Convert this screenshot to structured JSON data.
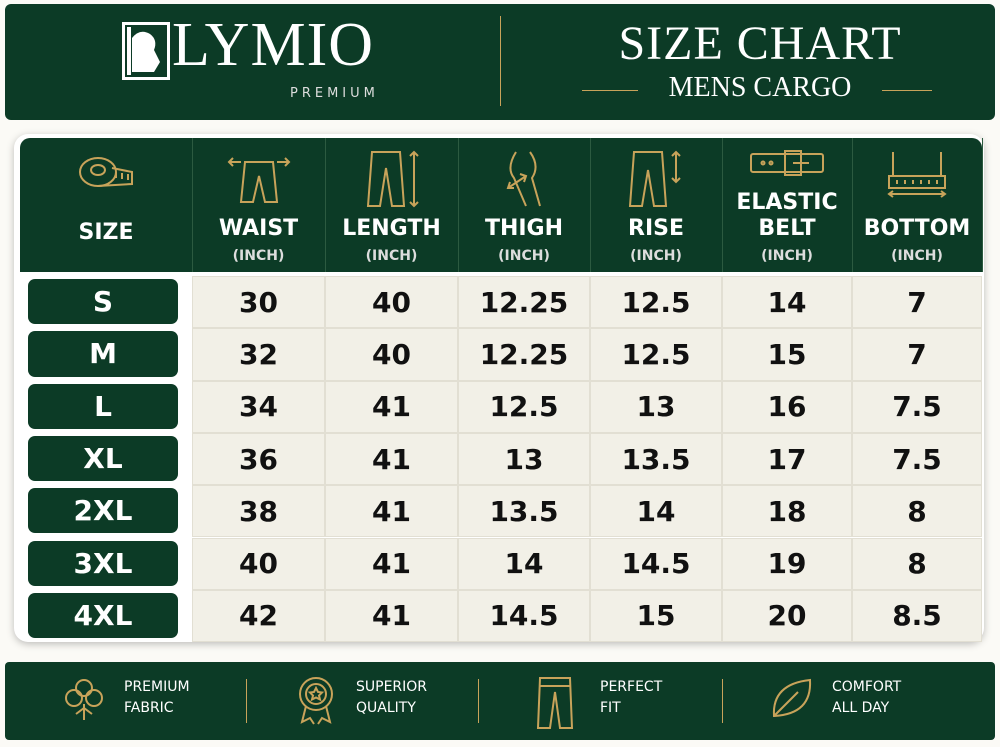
{
  "header": {
    "brand": "LYMIO",
    "tagline": "PREMIUM",
    "title": "SIZE CHART",
    "subtitle": "MENS CARGO"
  },
  "table": {
    "columns": [
      {
        "name": "SIZE"
      },
      {
        "name": "WAIST",
        "unit": "(INCH)"
      },
      {
        "name": "LENGTH",
        "unit": "(INCH)"
      },
      {
        "name": "THIGH",
        "unit": "(INCH)"
      },
      {
        "name": "RISE",
        "unit": "(INCH)"
      },
      {
        "name": "ELASTIC BELT",
        "unit": "(INCH)"
      },
      {
        "name": "BOTTOM",
        "unit": "(INCH)"
      }
    ],
    "rows": [
      [
        "S",
        "30",
        "40",
        "12.25",
        "12.5",
        "14",
        "7"
      ],
      [
        "M",
        "32",
        "40",
        "12.25",
        "12.5",
        "15",
        "7"
      ],
      [
        "L",
        "34",
        "41",
        "12.5",
        "13",
        "16",
        "7.5"
      ],
      [
        "XL",
        "36",
        "41",
        "13",
        "13.5",
        "17",
        "7.5"
      ],
      [
        "2XL",
        "38",
        "41",
        "13.5",
        "14",
        "18",
        "8"
      ],
      [
        "3XL",
        "40",
        "41",
        "14",
        "14.5",
        "19",
        "8"
      ],
      [
        "4XL",
        "42",
        "41",
        "14.5",
        "15",
        "20",
        "8.5"
      ]
    ]
  },
  "features": [
    {
      "lines": [
        "PREMIUM",
        "FABRIC"
      ]
    },
    {
      "lines": [
        "SUPERIOR",
        "QUALITY"
      ]
    },
    {
      "lines": [
        "PERFECT",
        "FIT"
      ]
    },
    {
      "lines": [
        "COMFORT",
        "ALL DAY"
      ]
    }
  ]
}
